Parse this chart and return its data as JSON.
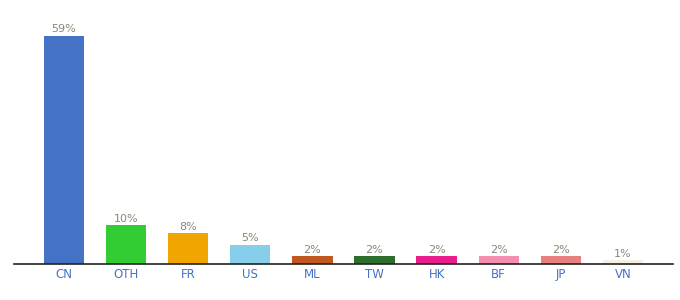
{
  "categories": [
    "CN",
    "OTH",
    "FR",
    "US",
    "ML",
    "TW",
    "HK",
    "BF",
    "JP",
    "VN"
  ],
  "values": [
    59,
    10,
    8,
    5,
    2,
    2,
    2,
    2,
    2,
    1
  ],
  "bar_colors": [
    "#4472c4",
    "#33cc33",
    "#f0a500",
    "#87ceeb",
    "#c05820",
    "#2d6e2d",
    "#e91e8c",
    "#f48fb1",
    "#e88080",
    "#f5f0e0"
  ],
  "ylim": [
    0,
    66
  ],
  "background_color": "#ffffff",
  "label_color": "#888877",
  "bar_label_fontsize": 8,
  "axis_label_fontsize": 8.5,
  "tick_color": "#4472c4"
}
